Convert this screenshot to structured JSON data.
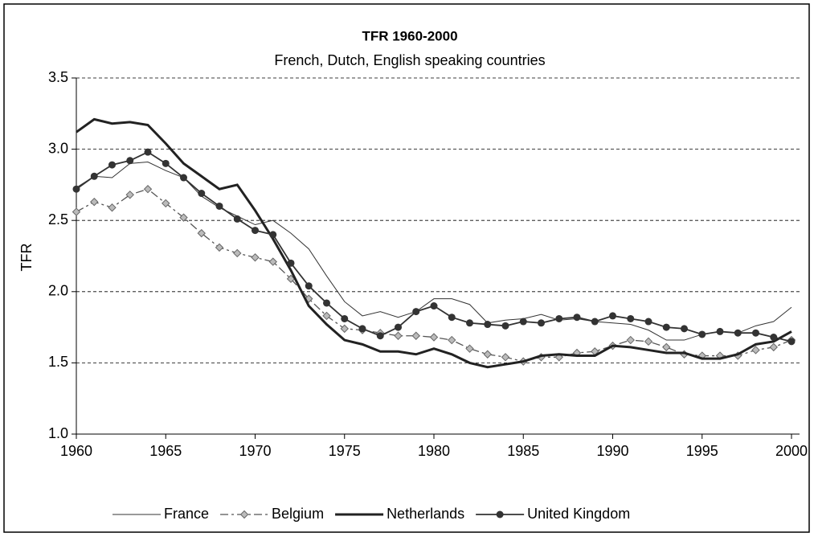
{
  "chart_data": {
    "type": "line",
    "title": "TFR 1960-2000",
    "subtitle": "French, Dutch, English speaking countries",
    "ylabel": "TFR",
    "x": [
      1960,
      1961,
      1962,
      1963,
      1964,
      1965,
      1966,
      1967,
      1968,
      1969,
      1970,
      1971,
      1972,
      1973,
      1974,
      1975,
      1976,
      1977,
      1978,
      1979,
      1980,
      1981,
      1982,
      1983,
      1984,
      1985,
      1986,
      1987,
      1988,
      1989,
      1990,
      1991,
      1992,
      1993,
      1994,
      1995,
      1996,
      1997,
      1998,
      1999,
      2000
    ],
    "series": [
      {
        "name": "France",
        "color": "#333333",
        "values": [
          2.73,
          2.81,
          2.8,
          2.9,
          2.91,
          2.85,
          2.8,
          2.67,
          2.59,
          2.53,
          2.47,
          2.5,
          2.41,
          2.3,
          2.11,
          1.93,
          1.83,
          1.86,
          1.82,
          1.86,
          1.95,
          1.95,
          1.91,
          1.78,
          1.8,
          1.81,
          1.84,
          1.8,
          1.81,
          1.79,
          1.78,
          1.77,
          1.73,
          1.66,
          1.66,
          1.7,
          1.72,
          1.71,
          1.76,
          1.79,
          1.89
        ]
      },
      {
        "name": "Belgium",
        "color": "#555555",
        "values": [
          2.56,
          2.63,
          2.59,
          2.68,
          2.72,
          2.62,
          2.52,
          2.41,
          2.31,
          2.27,
          2.24,
          2.21,
          2.09,
          1.95,
          1.83,
          1.74,
          1.73,
          1.71,
          1.69,
          1.69,
          1.68,
          1.66,
          1.6,
          1.56,
          1.54,
          1.51,
          1.54,
          1.54,
          1.57,
          1.58,
          1.62,
          1.66,
          1.65,
          1.61,
          1.56,
          1.55,
          1.55,
          1.55,
          1.59,
          1.61,
          1.66
        ]
      },
      {
        "name": "Netherlands",
        "color": "#222222",
        "values": [
          3.12,
          3.21,
          3.18,
          3.19,
          3.17,
          3.04,
          2.9,
          2.81,
          2.72,
          2.75,
          2.57,
          2.37,
          2.15,
          1.9,
          1.77,
          1.66,
          1.63,
          1.58,
          1.58,
          1.56,
          1.6,
          1.56,
          1.5,
          1.47,
          1.49,
          1.51,
          1.55,
          1.56,
          1.55,
          1.55,
          1.62,
          1.61,
          1.59,
          1.57,
          1.57,
          1.53,
          1.53,
          1.56,
          1.63,
          1.65,
          1.72
        ]
      },
      {
        "name": "United Kingdom",
        "color": "#333333",
        "values": [
          2.72,
          2.81,
          2.89,
          2.92,
          2.98,
          2.9,
          2.8,
          2.69,
          2.6,
          2.51,
          2.43,
          2.4,
          2.2,
          2.04,
          1.92,
          1.81,
          1.74,
          1.69,
          1.75,
          1.86,
          1.9,
          1.82,
          1.78,
          1.77,
          1.76,
          1.79,
          1.78,
          1.81,
          1.82,
          1.79,
          1.83,
          1.81,
          1.79,
          1.75,
          1.74,
          1.7,
          1.72,
          1.71,
          1.71,
          1.68,
          1.65
        ]
      }
    ],
    "xlim": [
      1960,
      2000
    ],
    "xticks": [
      1960,
      1965,
      1970,
      1975,
      1980,
      1985,
      1990,
      1995,
      2000
    ],
    "ylim": [
      1.0,
      3.5
    ],
    "yticks": [
      {
        "value": 1.0,
        "label": "1.0"
      },
      1.5,
      {
        "value": 2.0,
        "label": "2.0"
      },
      2.5,
      {
        "value": 3.0,
        "label": "3.0"
      },
      3.5
    ],
    "grid": true,
    "legend": "bottom"
  }
}
